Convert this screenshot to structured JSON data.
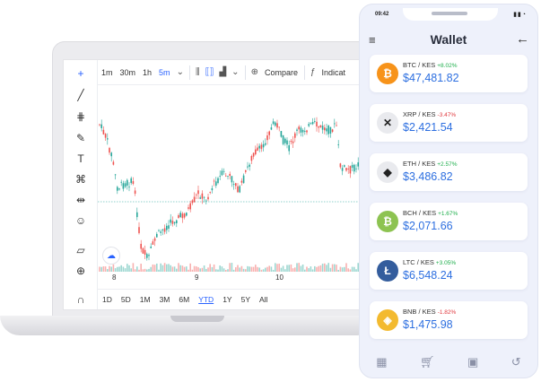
{
  "chart": {
    "toolbar": {
      "intervals": [
        "1m",
        "30m",
        "1h",
        "5m"
      ],
      "active_interval": "5m",
      "compare_label": "Compare",
      "indicators_label": "Indicat"
    },
    "x_axis_labels": [
      "8",
      "9",
      "10"
    ],
    "ranges": [
      "1D",
      "5D",
      "1M",
      "3M",
      "6M",
      "YTD",
      "1Y",
      "5Y",
      "All"
    ],
    "active_range": "YTD",
    "colors": {
      "up": "#26a69a",
      "down": "#ef5350",
      "accent": "#2962ff"
    }
  },
  "phone": {
    "status_time": "09:42",
    "title": "Wallet",
    "coins": [
      {
        "pair": "BTC / KES",
        "change": "+8.02%",
        "direction": "up",
        "price": "$47,481.82",
        "icon": "bitcoin-icon",
        "color": "#f7931a",
        "glyph": "₿"
      },
      {
        "pair": "XRP / KES",
        "change": "-3.47%",
        "direction": "down",
        "price": "$2,421.54",
        "icon": "xrp-icon",
        "color": "#e9eaee",
        "glyph": "✕"
      },
      {
        "pair": "ETH / KES",
        "change": "+2.57%",
        "direction": "up",
        "price": "$3,486.82",
        "icon": "ethereum-icon",
        "color": "#e9eaee",
        "glyph": "◆"
      },
      {
        "pair": "BCH / KES",
        "change": "+1.67%",
        "direction": "up",
        "price": "$2,071.66",
        "icon": "bitcoin-cash-icon",
        "color": "#8dc351",
        "glyph": "₿"
      },
      {
        "pair": "LTC / KES",
        "change": "+3.05%",
        "direction": "up",
        "price": "$6,548.24",
        "icon": "litecoin-icon",
        "color": "#345d9d",
        "glyph": "Ł"
      },
      {
        "pair": "BNB / KES",
        "change": "-1.82%",
        "direction": "down",
        "price": "$1,475.98",
        "icon": "binance-icon",
        "color": "#f3ba2f",
        "glyph": "◈"
      }
    ],
    "nav": [
      "dashboard-icon",
      "cart-icon",
      "wallet-icon",
      "history-icon"
    ]
  }
}
